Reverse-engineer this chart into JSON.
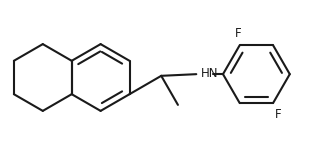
{
  "background_color": "#ffffff",
  "line_color": "#1a1a1a",
  "line_width": 1.5,
  "font_size_labels": 8.5,
  "label_F1": "F",
  "label_F2": "F",
  "label_HN": "HN",
  "figsize": [
    3.3,
    1.55
  ],
  "dpi": 100
}
